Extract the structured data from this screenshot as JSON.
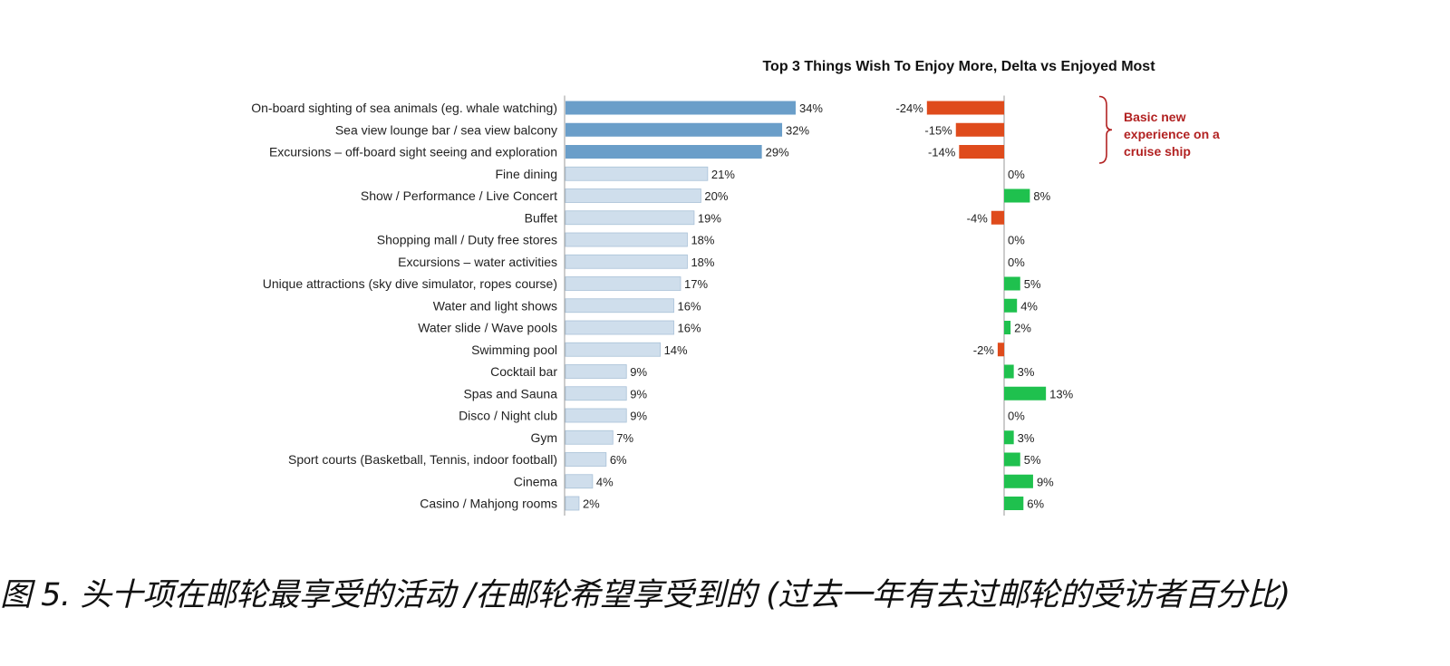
{
  "chart_data": {
    "type": "bar",
    "title": "Top 3 Things Wish To Enjoy More, Delta vs Enjoyed Most",
    "categories": [
      "On-board sighting of sea animals (eg. whale watching)",
      "Sea view lounge bar / sea view balcony",
      "Excursions – off-board sight seeing and exploration",
      "Fine dining",
      "Show / Performance / Live Concert",
      "Buffet",
      "Shopping mall / Duty free stores",
      "Excursions – water activities",
      "Unique attractions (sky dive simulator, ropes course)",
      "Water and light shows",
      "Water slide / Wave pools",
      "Swimming pool",
      "Cocktail bar",
      "Spas and Sauna",
      "Disco / Night club",
      "Gym",
      "Sport courts (Basketball, Tennis, indoor football)",
      "Cinema",
      "Casino / Mahjong rooms"
    ],
    "series": [
      {
        "values": [
          34,
          32,
          29,
          21,
          20,
          19,
          18,
          18,
          17,
          16,
          16,
          14,
          9,
          9,
          9,
          7,
          6,
          4,
          2
        ],
        "labels": [
          "34%",
          "32%",
          "29%",
          "21%",
          "20%",
          "19%",
          "18%",
          "18%",
          "17%",
          "16%",
          "16%",
          "14%",
          "9%",
          "9%",
          "9%",
          "7%",
          "6%",
          "4%",
          "2%"
        ]
      },
      {
        "values": [
          -24,
          -15,
          -14,
          0,
          8,
          -4,
          0,
          0,
          5,
          4,
          2,
          -2,
          3,
          13,
          0,
          3,
          5,
          9,
          6
        ],
        "labels": [
          "-24%",
          "-15%",
          "-14%",
          "0%",
          "8%",
          "-4%",
          "0%",
          "0%",
          "5%",
          "4%",
          "2%",
          "-2%",
          "3%",
          "13%",
          "0%",
          "3%",
          "5%",
          "9%",
          "6%"
        ]
      }
    ],
    "highlighted_count": 3,
    "annotation": [
      "Basic new",
      "experience on a",
      "cruise ship"
    ],
    "colors": {
      "highlight": "#6a9ec9",
      "normal": "#cfdeec",
      "normal_stroke": "#a9c1d8",
      "negative": "#df4b1c",
      "positive": "#1fc14e",
      "annotation": "#b22222"
    },
    "grid": false,
    "legend": "none"
  },
  "caption": "图 5. 头十项在邮轮最享受的活动 /在邮轮希望享受到的 (过去一年有去过邮轮的受访者百分比)"
}
